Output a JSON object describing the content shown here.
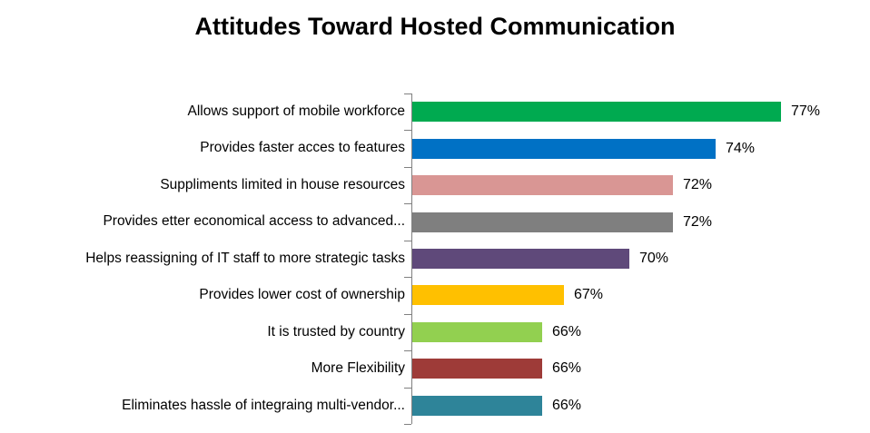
{
  "title": "Attitudes Toward Hosted Communication",
  "chart_data": {
    "type": "bar",
    "orientation": "horizontal",
    "title": "Attitudes Toward Hosted Communication",
    "xlabel": "",
    "ylabel": "",
    "xlim": [
      60,
      78
    ],
    "grid": false,
    "legend": false,
    "axis_color": "#808080",
    "categories": [
      "Allows support of mobile workforce",
      "Provides faster acces to features",
      "Suppliments limited in house resources",
      "Provides etter economical access to advanced...",
      "Helps reassigning of IT staff to more strategic tasks",
      "Provides lower cost of ownership",
      "It is trusted by country",
      "More Flexibility",
      "Eliminates hassle of integraing multi-vendor..."
    ],
    "values": [
      77,
      74,
      72,
      72,
      70,
      67,
      66,
      66,
      66
    ],
    "value_labels": [
      "77%",
      "74%",
      "72%",
      "72%",
      "70%",
      "67%",
      "66%",
      "66%",
      "66%"
    ],
    "colors": [
      "#00AA50",
      "#0071C5",
      "#D99694",
      "#7F7F7F",
      "#5F497A",
      "#FFC000",
      "#92D050",
      "#9E3B38",
      "#2E8499"
    ]
  }
}
